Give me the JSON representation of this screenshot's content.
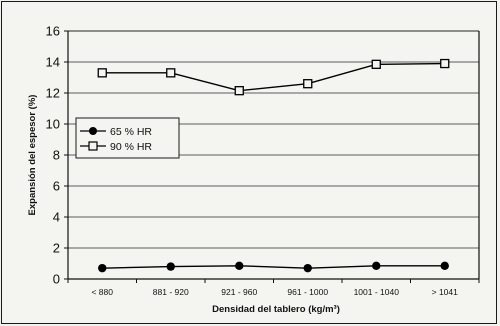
{
  "chart_data": {
    "type": "line",
    "title": "",
    "xlabel": "Densidad del tablero (kg/m³)",
    "ylabel": "Expansión del espesor (%)",
    "categories": [
      "< 880",
      "881 - 920",
      "921 - 960",
      "961 - 1000",
      "1001 - 1040",
      "> 1041"
    ],
    "ylim": [
      0,
      16
    ],
    "yticks": [
      "0",
      "2",
      "4",
      "6",
      "8",
      "10",
      "12",
      "14",
      "16"
    ],
    "grid": "horizontal",
    "legend_position": "left",
    "series": [
      {
        "name": "65 % HR",
        "marker": "filled-circle",
        "color": "#000000",
        "values": [
          0.7,
          0.8,
          0.85,
          0.7,
          0.85,
          0.85
        ]
      },
      {
        "name": "90 % HR",
        "marker": "open-square",
        "color": "#000000",
        "values": [
          13.3,
          13.3,
          12.15,
          12.6,
          13.85,
          13.9
        ]
      }
    ]
  }
}
